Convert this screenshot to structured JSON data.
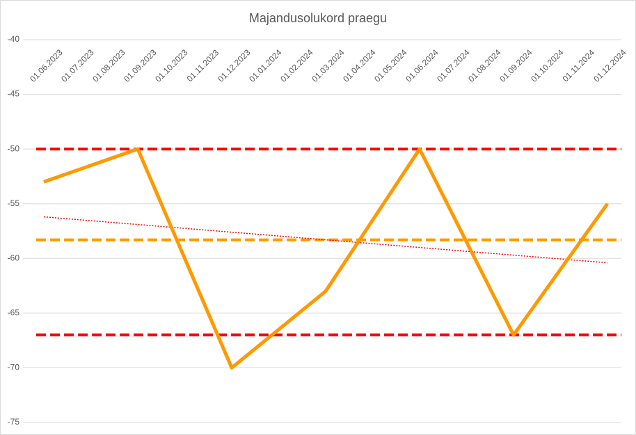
{
  "chart_data": {
    "type": "line",
    "title": "Majandusolukord praegu",
    "categories": [
      "01.06.2023",
      "01.07.2023",
      "01.08.2023",
      "01.09.2023",
      "01.10.2023",
      "01.11.2023",
      "01.12.2023",
      "01.01.2024",
      "01.02.2024",
      "01.03.2024",
      "01.04.2024",
      "01.05.2024",
      "01.06.2024",
      "01.07.2024",
      "01.08.2024",
      "01.09.2024",
      "01.10.2024",
      "01.11.2024",
      "01.12.2024"
    ],
    "series": [
      {
        "color": "#ff9900",
        "x": [
          "01.06.2023",
          "01.09.2023",
          "01.12.2023",
          "01.03.2024",
          "01.06.2024",
          "01.09.2024",
          "01.12.2024"
        ],
        "values": [
          -53,
          -50,
          -70,
          -63,
          -50,
          -67,
          -55
        ]
      }
    ],
    "reference_lines": [
      {
        "value": -50,
        "color": "#ff0000"
      },
      {
        "value": -67,
        "color": "#ff0000"
      },
      {
        "value": -58.3,
        "color": "#ff9900"
      }
    ],
    "trendline": {
      "color": "#ff0000",
      "values": [
        -56.2,
        -60.4
      ]
    },
    "ylim": [
      -75,
      -40
    ],
    "yticks": [
      -75,
      -70,
      -65,
      -60,
      -55,
      -50,
      -45,
      -40
    ],
    "grid": true
  }
}
